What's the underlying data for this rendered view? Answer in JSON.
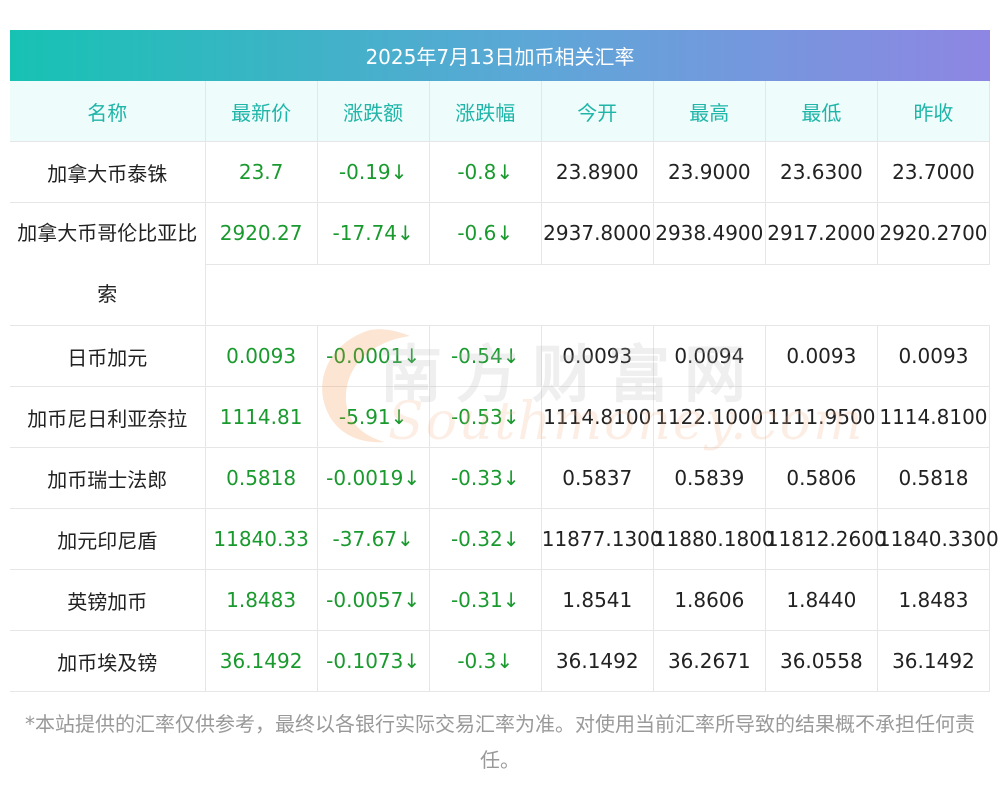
{
  "title": "2025年7月13日加币相关汇率",
  "headers": [
    "名称",
    "最新价",
    "涨跌额",
    "涨跌幅",
    "今开",
    "最高",
    "最低",
    "昨收"
  ],
  "rows": [
    {
      "name": "加拿大币泰铢",
      "latest": "23.7",
      "change": "-0.19↓",
      "pct": "-0.8↓",
      "open": "23.8900",
      "high": "23.9000",
      "low": "23.6300",
      "prev": "23.7000"
    },
    {
      "name": "加拿大币哥伦比亚比索",
      "latest": "2920.27",
      "change": "-17.74↓",
      "pct": "-0.6↓",
      "open": "2937.8000",
      "high": "2938.4900",
      "low": "2917.2000",
      "prev": "2920.2700"
    },
    {
      "name": "日币加元",
      "latest": "0.0093",
      "change": "-0.0001↓",
      "pct": "-0.54↓",
      "open": "0.0093",
      "high": "0.0094",
      "low": "0.0093",
      "prev": "0.0093"
    },
    {
      "name": "加币尼日利亚奈拉",
      "latest": "1114.81",
      "change": "-5.91↓",
      "pct": "-0.53↓",
      "open": "1114.8100",
      "high": "1122.1000",
      "low": "1111.9500",
      "prev": "1114.8100"
    },
    {
      "name": "加币瑞士法郎",
      "latest": "0.5818",
      "change": "-0.0019↓",
      "pct": "-0.33↓",
      "open": "0.5837",
      "high": "0.5839",
      "low": "0.5806",
      "prev": "0.5818"
    },
    {
      "name": "加元印尼盾",
      "latest": "11840.33",
      "change": "-37.67↓",
      "pct": "-0.32↓",
      "open": "11877.1300",
      "high": "11880.1800",
      "low": "11812.2600",
      "prev": "11840.3300"
    },
    {
      "name": "英镑加币",
      "latest": "1.8483",
      "change": "-0.0057↓",
      "pct": "-0.31↓",
      "open": "1.8541",
      "high": "1.8606",
      "low": "1.8440",
      "prev": "1.8483"
    },
    {
      "name": "加币埃及镑",
      "latest": "36.1492",
      "change": "-0.1073↓",
      "pct": "-0.3↓",
      "open": "36.1492",
      "high": "36.2671",
      "low": "36.0558",
      "prev": "36.1492"
    }
  ],
  "watermark": {
    "cn": "南方财富网",
    "en": "Southmoney.com"
  },
  "footnote": "*本站提供的汇率仅供参考，最终以各银行实际交易汇率为准。对使用当前汇率所导致的结果概不承担任何责任。",
  "colors": {
    "header_text": "#1fb5a8",
    "header_bg": "#eefcfb",
    "value_green": "#1a9a2e",
    "title_gradient": [
      "#17c2b3",
      "#8e86e3"
    ]
  }
}
